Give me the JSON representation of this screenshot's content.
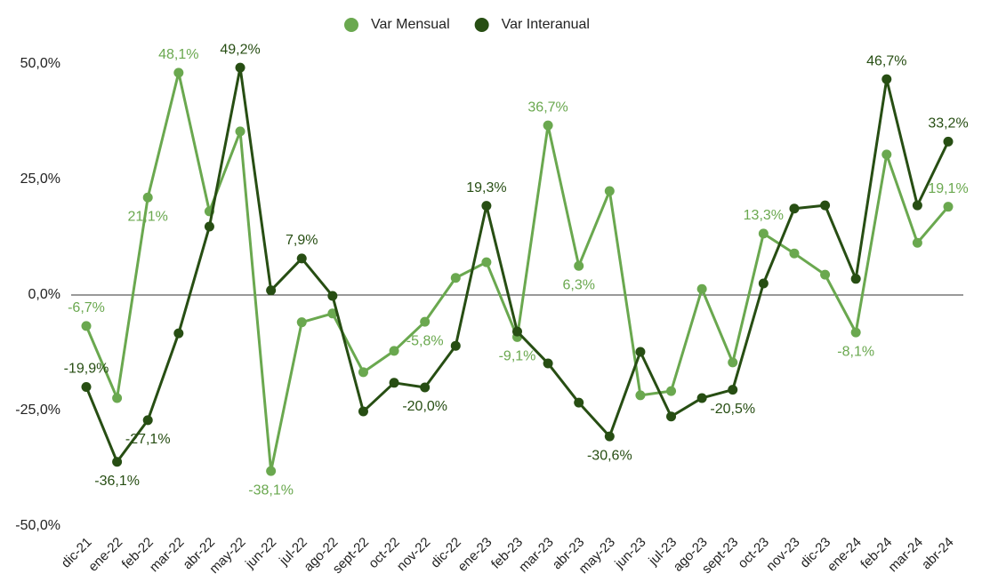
{
  "chart_data": {
    "type": "line",
    "categories": [
      "dic-21",
      "ene-22",
      "feb-22",
      "mar-22",
      "abr-22",
      "may-22",
      "jun-22",
      "jul-22",
      "ago-22",
      "sept-22",
      "oct-22",
      "nov-22",
      "dic-22",
      "ene-23",
      "feb-23",
      "mar-23",
      "abr-23",
      "may-23",
      "jun-23",
      "jul-23",
      "ago-23",
      "sept-23",
      "oct-23",
      "nov-23",
      "dic-23",
      "ene-24",
      "feb-24",
      "mar-24",
      "abr-24"
    ],
    "series": [
      {
        "name": "Var Mensual",
        "color": "#6aa84f",
        "values": [
          -6.7,
          -22.3,
          21.1,
          48.1,
          18.1,
          35.4,
          -38.1,
          -5.9,
          -4.0,
          -16.7,
          -12.1,
          -5.8,
          3.7,
          7.1,
          -9.1,
          36.7,
          6.3,
          22.5,
          -21.7,
          -20.8,
          1.3,
          -14.6,
          13.3,
          9.0,
          4.4,
          -8.1,
          30.4,
          11.3,
          19.1
        ],
        "value_labels": [
          "-6,7%",
          null,
          "21,1%",
          "48,1%",
          null,
          null,
          "-38,1%",
          null,
          null,
          null,
          null,
          "-5,8%",
          null,
          null,
          "-9,1%",
          "36,7%",
          "6,3%",
          null,
          null,
          null,
          null,
          null,
          "13,3%",
          null,
          null,
          "-8,1%",
          null,
          null,
          "19,1%"
        ]
      },
      {
        "name": "Var Interanual",
        "color": "#274e13",
        "values": [
          -19.9,
          -36.1,
          -27.1,
          -8.3,
          14.8,
          49.2,
          1.0,
          7.9,
          -0.2,
          -25.2,
          -19.0,
          -20.0,
          -11.0,
          19.3,
          -7.9,
          -14.8,
          -23.3,
          -30.6,
          -12.3,
          -26.3,
          -22.3,
          -20.5,
          2.5,
          18.7,
          19.4,
          3.5,
          46.7,
          19.4,
          33.2
        ],
        "value_labels": [
          "-19,9%",
          "-36,1%",
          "-27,1%",
          null,
          null,
          "49,2%",
          null,
          "7,9%",
          null,
          null,
          null,
          "-20,0%",
          null,
          "19,3%",
          null,
          null,
          null,
          "-30,6%",
          null,
          null,
          null,
          "-20,5%",
          null,
          null,
          null,
          null,
          "46,7%",
          null,
          "33,2%"
        ]
      }
    ],
    "ylim": [
      -50,
      50
    ],
    "yticks": [
      {
        "value": -50,
        "label": "-50,0%"
      },
      {
        "value": -25,
        "label": "-25,0%"
      },
      {
        "value": 0,
        "label": "0,0%"
      },
      {
        "value": 25,
        "label": "25,0%"
      },
      {
        "value": 50,
        "label": "50,0%"
      }
    ],
    "legend": "top"
  }
}
